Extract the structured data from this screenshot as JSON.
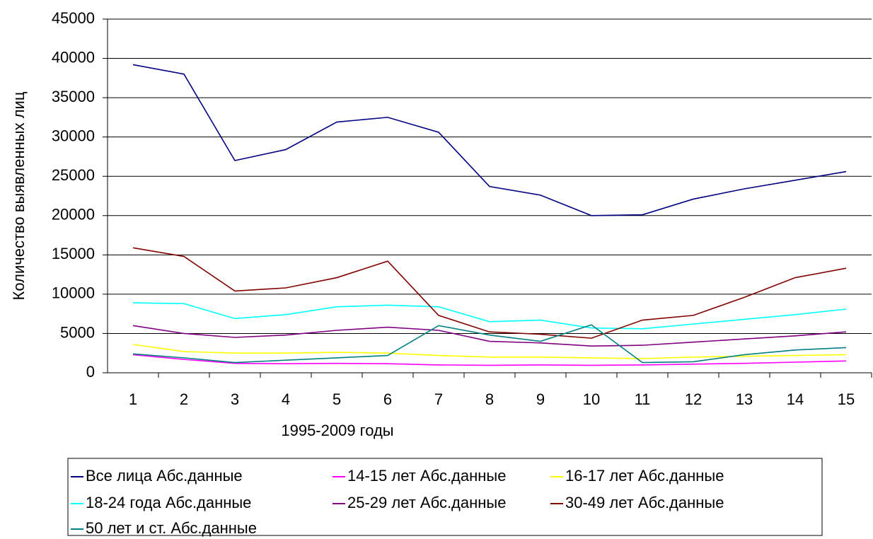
{
  "chart_data": {
    "type": "line",
    "x_label": "1995-2009 годы",
    "y_label": "Количество выявленных лиц",
    "categories": [
      "1",
      "2",
      "3",
      "4",
      "5",
      "6",
      "7",
      "8",
      "9",
      "10",
      "11",
      "12",
      "13",
      "14",
      "15"
    ],
    "ylim": [
      0,
      45000
    ],
    "yticks": [
      0,
      5000,
      10000,
      15000,
      20000,
      25000,
      30000,
      35000,
      40000,
      45000
    ],
    "grid": true,
    "legend": "bottom",
    "series": [
      {
        "name": "Все лица Абс.данные",
        "color": "#000080",
        "values": [
          39200,
          38000,
          27000,
          28400,
          31900,
          32500,
          30600,
          23700,
          22600,
          20000,
          20100,
          22100,
          23400,
          24500,
          25600
        ]
      },
      {
        "name": "14-15 лет Абс.данные",
        "color": "#ff00ff",
        "values": [
          2300,
          1700,
          1200,
          1150,
          1200,
          1150,
          1000,
          950,
          1000,
          950,
          1000,
          1100,
          1200,
          1350,
          1500
        ]
      },
      {
        "name": "16-17 лет Абс.данные",
        "color": "#ffff00",
        "values": [
          3600,
          2700,
          2500,
          2500,
          2600,
          2500,
          2200,
          2000,
          2000,
          1900,
          1800,
          2000,
          2100,
          2200,
          2300
        ]
      },
      {
        "name": "18-24 года Абс.данные",
        "color": "#00ffff",
        "values": [
          8900,
          8800,
          6900,
          7400,
          8400,
          8600,
          8400,
          6500,
          6700,
          5700,
          5600,
          6200,
          6800,
          7400,
          8100
        ]
      },
      {
        "name": "25-29 лет Абс.данные",
        "color": "#800080",
        "values": [
          6000,
          5000,
          4500,
          4800,
          5400,
          5800,
          5400,
          4000,
          3800,
          3400,
          3500,
          3900,
          4300,
          4700,
          5200
        ]
      },
      {
        "name": "30-49 лет Абс.данные",
        "color": "#800000",
        "values": [
          15900,
          14800,
          10400,
          10800,
          12100,
          14200,
          7300,
          5200,
          4900,
          4400,
          6700,
          7300,
          9600,
          12100,
          13300
        ]
      },
      {
        "name": "50 лет и ст. Абс.данные",
        "color": "#008080",
        "values": [
          2400,
          1900,
          1300,
          1600,
          1900,
          2200,
          6000,
          4800,
          4000,
          6100,
          1300,
          1400,
          2300,
          2900,
          3200
        ]
      }
    ]
  }
}
